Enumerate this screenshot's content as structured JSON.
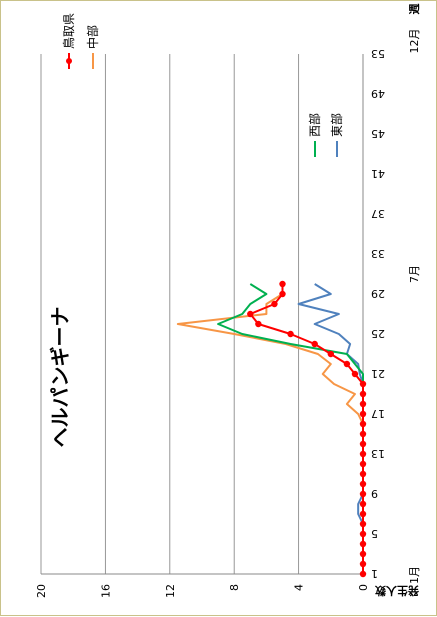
{
  "chart_data": {
    "type": "line",
    "title": "ヘルパンギーナ",
    "ylabel": "発生人数",
    "xlabel_unit": "週",
    "month_labels": [
      "1月",
      "7月",
      "12月"
    ],
    "ylim": [
      0,
      20
    ],
    "yticks": [
      "0",
      "4",
      "8",
      "12",
      "16",
      "20"
    ],
    "xlim": [
      1,
      53
    ],
    "xticks": [
      "1",
      "5",
      "9",
      "13",
      "17",
      "21",
      "25",
      "29",
      "33",
      "37",
      "41",
      "45",
      "49",
      "53"
    ],
    "grid": true,
    "legend_placement": "top-right",
    "series": [
      {
        "name": "東部",
        "color": "#4f81bd",
        "x": [
          1,
          2,
          3,
          4,
          5,
          6,
          7,
          8,
          9,
          10,
          11,
          12,
          13,
          14,
          15,
          16,
          17,
          18,
          19,
          20,
          21,
          22,
          23,
          24,
          25,
          26,
          27,
          28,
          29,
          30
        ],
        "values": [
          0,
          0,
          0,
          0,
          0,
          0,
          0.3,
          0.3,
          0,
          0,
          0,
          0,
          0,
          0,
          0,
          0,
          0,
          0,
          0,
          0,
          0.2,
          0.3,
          1.0,
          0.8,
          1.5,
          3.0,
          1.5,
          4.0,
          2.0,
          3.0
        ]
      },
      {
        "name": "中部",
        "color": "#f79646",
        "x": [
          1,
          2,
          3,
          4,
          5,
          6,
          7,
          8,
          9,
          10,
          11,
          12,
          13,
          14,
          15,
          16,
          17,
          18,
          19,
          20,
          21,
          22,
          23,
          24,
          25,
          26,
          27,
          28,
          29,
          30
        ],
        "values": [
          0,
          0,
          0,
          0,
          0,
          0,
          0,
          0,
          0,
          0,
          0,
          0,
          0,
          0,
          0,
          0,
          0.3,
          1.0,
          0.5,
          1.8,
          2.5,
          2.0,
          2.8,
          4.8,
          8.0,
          11.5,
          6.0,
          6.0,
          5.0,
          5.0
        ]
      },
      {
        "name": "西部",
        "color": "#00b050",
        "x": [
          1,
          2,
          3,
          4,
          5,
          6,
          7,
          8,
          9,
          10,
          11,
          12,
          13,
          14,
          15,
          16,
          17,
          18,
          19,
          20,
          21,
          22,
          23,
          24,
          25,
          26,
          27,
          28,
          29,
          30
        ],
        "values": [
          0,
          0,
          0,
          0,
          0,
          0,
          0,
          0,
          0,
          0,
          0,
          0,
          0,
          0,
          0,
          0,
          0,
          0,
          0,
          0,
          0,
          0.5,
          1.0,
          4.5,
          7.5,
          9.0,
          7.5,
          7.0,
          6.0,
          7.0
        ]
      },
      {
        "name": "鳥取県",
        "color": "#ff0000",
        "x": [
          1,
          2,
          3,
          4,
          5,
          6,
          7,
          8,
          9,
          10,
          11,
          12,
          13,
          14,
          15,
          16,
          17,
          18,
          19,
          20,
          21,
          22,
          23,
          24,
          25,
          26,
          27,
          28,
          29,
          30
        ],
        "values": [
          0,
          0,
          0,
          0,
          0,
          0,
          0,
          0,
          0,
          0,
          0,
          0,
          0,
          0,
          0,
          0,
          0,
          0,
          0,
          0,
          0.5,
          1.0,
          2.0,
          3.0,
          4.5,
          6.5,
          7.0,
          5.5,
          5.0,
          5.0
        ]
      }
    ]
  }
}
